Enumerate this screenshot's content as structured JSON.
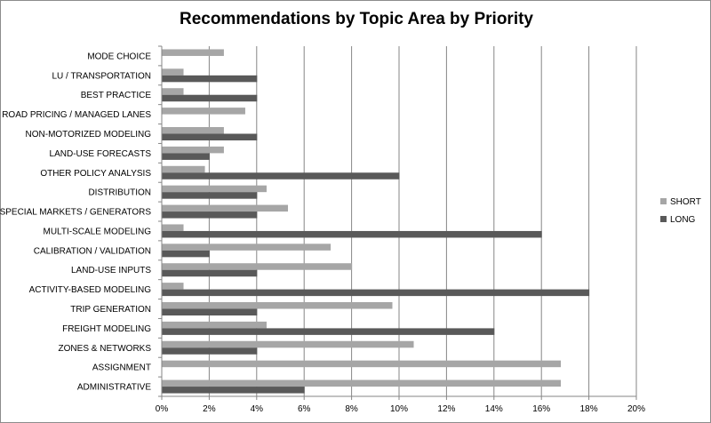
{
  "chart_data": {
    "type": "bar",
    "orientation": "horizontal",
    "title": "Recommendations by Topic Area by Priority",
    "xlabel": "",
    "ylabel": "",
    "xlim": [
      0,
      20
    ],
    "x_ticks": [
      "0%",
      "2%",
      "4%",
      "6%",
      "8%",
      "10%",
      "12%",
      "14%",
      "16%",
      "18%",
      "20%"
    ],
    "grid": "vertical",
    "legend_position": "right",
    "categories": [
      "MODE CHOICE",
      "LU / TRANSPORTATION",
      "BEST PRACTICE",
      "ROAD PRICING / MANAGED LANES",
      "NON-MOTORIZED MODELING",
      "LAND-USE FORECASTS",
      "OTHER POLICY ANALYSIS",
      "DISTRIBUTION",
      "SPECIAL MARKETS / GENERATORS",
      "MULTI-SCALE MODELING",
      "CALIBRATION / VALIDATION",
      "LAND-USE INPUTS",
      "ACTIVITY-BASED MODELING",
      "TRIP GENERATION",
      "FREIGHT MODELING",
      "ZONES & NETWORKS",
      "ASSIGNMENT",
      "ADMINISTRATIVE"
    ],
    "series": [
      {
        "name": "SHORT",
        "color": "#a6a6a6",
        "values": [
          2.6,
          0.9,
          0.9,
          3.5,
          2.6,
          2.6,
          1.8,
          4.4,
          5.3,
          0.9,
          7.1,
          8.0,
          0.9,
          9.7,
          4.4,
          10.6,
          16.8,
          16.8
        ]
      },
      {
        "name": "LONG",
        "color": "#595959",
        "values": [
          0,
          4.0,
          4.0,
          0,
          4.0,
          2.0,
          10.0,
          4.0,
          4.0,
          16.0,
          2.0,
          4.0,
          18.0,
          4.0,
          14.0,
          4.0,
          0,
          6.0
        ]
      }
    ]
  }
}
